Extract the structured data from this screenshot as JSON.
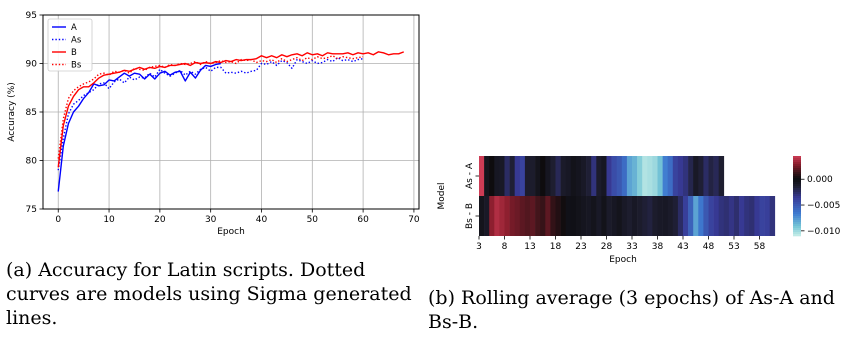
{
  "captions": {
    "a": "(a) Accuracy for Latin scripts. Dotted curves are models using Sigma generated lines.",
    "b": "(b) Rolling average (3 epochs) of As-A and Bs-B."
  },
  "chart_data": [
    {
      "type": "line",
      "xlabel": "Epoch",
      "ylabel": "Accuracy (%)",
      "xlim": [
        -3,
        71
      ],
      "ylim": [
        75,
        95
      ],
      "xticks": [
        0,
        10,
        20,
        30,
        40,
        50,
        60,
        70
      ],
      "yticks": [
        75,
        80,
        85,
        90,
        95
      ],
      "grid": true,
      "legend": "top-left",
      "series": [
        {
          "name": "A",
          "color": "#0000ff",
          "style": "solid",
          "x": [
            0,
            1,
            2,
            3,
            4,
            5,
            6,
            7,
            8,
            9,
            10,
            11,
            12,
            13,
            14,
            15,
            16,
            17,
            18,
            19,
            20,
            21,
            22,
            23,
            24,
            25,
            26,
            27,
            28,
            29,
            30,
            31,
            32
          ],
          "y": [
            76.8,
            81.5,
            83.8,
            85.0,
            85.6,
            86.4,
            87.0,
            87.9,
            87.7,
            87.8,
            88.3,
            88.2,
            88.6,
            89.0,
            88.7,
            89.0,
            88.9,
            88.4,
            88.9,
            88.4,
            89.0,
            89.2,
            88.8,
            89.1,
            89.2,
            88.2,
            89.1,
            88.5,
            89.3,
            89.8,
            89.7,
            89.9,
            90.0
          ]
        },
        {
          "name": "As",
          "color": "#0000ff",
          "style": "dotted",
          "x": [
            0,
            1,
            2,
            3,
            4,
            5,
            6,
            7,
            8,
            9,
            10,
            11,
            12,
            13,
            14,
            15,
            16,
            17,
            18,
            19,
            20,
            21,
            22,
            23,
            24,
            25,
            26,
            27,
            28,
            29,
            30,
            31,
            32,
            33,
            34,
            35,
            36,
            37,
            38,
            39,
            40,
            41,
            42,
            43,
            44,
            45,
            46,
            47,
            48,
            49,
            50,
            51,
            52,
            53,
            54,
            55,
            56,
            57,
            58,
            59,
            60
          ],
          "y": [
            79.0,
            82.3,
            84.8,
            85.8,
            86.2,
            86.7,
            87.0,
            87.3,
            87.9,
            88.0,
            87.4,
            88.1,
            88.4,
            88.0,
            88.6,
            88.3,
            88.6,
            88.5,
            89.0,
            88.6,
            89.4,
            89.0,
            88.7,
            89.0,
            89.3,
            88.8,
            89.2,
            88.9,
            89.4,
            89.6,
            89.2,
            89.6,
            89.6,
            89.0,
            89.1,
            89.0,
            89.2,
            89.0,
            89.2,
            89.3,
            90.0,
            89.9,
            90.2,
            89.8,
            90.3,
            90.1,
            89.5,
            90.4,
            90.2,
            90.0,
            90.3,
            90.0,
            90.1,
            90.4,
            90.2,
            90.6,
            90.3,
            90.4,
            90.2,
            90.4,
            90.5
          ]
        },
        {
          "name": "B",
          "color": "#ff0000",
          "style": "solid",
          "x": [
            0,
            1,
            2,
            3,
            4,
            5,
            6,
            7,
            8,
            9,
            10,
            11,
            12,
            13,
            14,
            15,
            16,
            17,
            18,
            19,
            20,
            21,
            22,
            23,
            24,
            25,
            26,
            27,
            28,
            29,
            30,
            31,
            32,
            33,
            34,
            35,
            36,
            37,
            38,
            39,
            40,
            41,
            42,
            43,
            44,
            45,
            46,
            47,
            48,
            49,
            50,
            51,
            52,
            53,
            54,
            55,
            56,
            57,
            58,
            59,
            60,
            61,
            62,
            63,
            64,
            65,
            66,
            67,
            68
          ],
          "y": [
            79.3,
            83.6,
            85.6,
            86.6,
            87.3,
            87.6,
            87.6,
            88.0,
            88.5,
            88.8,
            88.9,
            89.0,
            89.1,
            89.3,
            89.2,
            89.4,
            89.6,
            89.4,
            89.6,
            89.5,
            89.7,
            89.6,
            89.8,
            89.8,
            89.9,
            90.0,
            89.8,
            90.1,
            90.0,
            90.1,
            90.0,
            90.2,
            90.1,
            90.3,
            90.2,
            90.4,
            90.3,
            90.4,
            90.4,
            90.5,
            90.8,
            90.6,
            90.8,
            90.6,
            90.9,
            90.7,
            90.9,
            91.0,
            90.8,
            91.1,
            90.9,
            91.0,
            90.8,
            91.1,
            91.0,
            91.0,
            91.0,
            91.1,
            90.9,
            91.1,
            91.0,
            91.1,
            90.9,
            91.2,
            91.1,
            90.9,
            91.0,
            91.0,
            91.2
          ]
        },
        {
          "name": "Bs",
          "color": "#ff0000",
          "style": "dotted",
          "x": [
            0,
            1,
            2,
            3,
            4,
            5,
            6,
            7,
            8,
            9,
            10,
            11,
            12,
            13,
            14,
            15,
            16,
            17,
            18,
            19,
            20,
            21,
            22,
            23,
            24,
            25,
            26,
            27,
            28,
            29,
            30,
            31,
            32,
            33,
            34,
            35,
            36,
            37,
            38,
            39,
            40,
            41,
            42,
            43,
            44,
            45,
            46,
            47,
            48,
            49,
            50,
            51,
            52,
            53,
            54,
            55,
            56,
            57,
            58,
            59,
            60
          ],
          "y": [
            80.2,
            84.3,
            86.4,
            87.2,
            87.6,
            87.9,
            88.1,
            88.4,
            88.9,
            89.0,
            88.8,
            89.2,
            89.1,
            89.3,
            89.0,
            89.5,
            89.4,
            89.3,
            89.6,
            89.7,
            89.8,
            89.6,
            89.9,
            89.8,
            90.0,
            89.9,
            90.0,
            90.2,
            89.9,
            90.2,
            90.0,
            90.1,
            90.3,
            90.1,
            90.2,
            90.0,
            90.4,
            90.3,
            90.4,
            90.1,
            90.3,
            90.2,
            90.4,
            90.1,
            90.5,
            90.2,
            90.4,
            90.6,
            90.3,
            90.6,
            90.4,
            90.7,
            90.5,
            90.6,
            90.8,
            90.5,
            90.7,
            90.6,
            90.5,
            90.6,
            90.7
          ]
        }
      ]
    },
    {
      "type": "heatmap",
      "xlabel": "Epoch",
      "ylabel": "Model",
      "xticks": [
        "3",
        "8",
        "13",
        "18",
        "23",
        "28",
        "33",
        "38",
        "43",
        "48",
        "53",
        "58"
      ],
      "rows": [
        {
          "name": "As - A",
          "start": 3,
          "values": [
            0.0045,
            -0.0005,
            0.0002,
            -0.0008,
            -0.001,
            -0.0025,
            -0.0015,
            -0.0035,
            -0.004,
            -0.0012,
            -0.0012,
            -0.0005,
            0.0002,
            -0.0007,
            -0.0014,
            -0.0022,
            -0.0011,
            -0.0009,
            -0.0004,
            -0.0006,
            -0.001,
            -0.0015,
            -0.003,
            -0.0012,
            -0.0008,
            -0.0035,
            -0.0045,
            -0.005,
            -0.006,
            -0.008,
            -0.0085,
            -0.0095,
            -0.0105,
            -0.0103,
            -0.01,
            -0.009,
            -0.0068,
            -0.006,
            -0.004,
            -0.0035,
            -0.003,
            -0.002,
            -0.001,
            -0.0015,
            -0.0025,
            -0.0018,
            -0.0022,
            -0.0014
          ]
        },
        {
          "name": "Bs - B",
          "start": 3,
          "values": [
            -0.0005,
            -0.001,
            0.003,
            0.0038,
            0.0034,
            0.003,
            0.0025,
            0.0023,
            0.002,
            0.0018,
            0.002,
            0.0015,
            0.0012,
            0.002,
            0.0011,
            0.0007,
            0.0003,
            -0.0003,
            -0.0002,
            -0.0004,
            -0.0006,
            -0.0008,
            -0.0005,
            -0.001,
            -0.0004,
            -0.0011,
            -0.0008,
            -0.0005,
            -0.001,
            -0.0013,
            -0.0009,
            -0.0012,
            -0.0015,
            -0.0017,
            -0.0012,
            -0.001,
            -0.0009,
            -0.0011,
            -0.0015,
            -0.0025,
            -0.0038,
            -0.0055,
            -0.008,
            -0.0065,
            -0.005,
            -0.004,
            -0.0035,
            -0.003,
            -0.0028,
            -0.0032,
            -0.0027,
            -0.0035,
            -0.003,
            -0.0028,
            -0.0035,
            -0.004,
            -0.0038,
            -0.003
          ]
        }
      ],
      "colorbar": {
        "ticks": [
          0.0,
          -0.005,
          -0.01
        ],
        "tick_labels": [
          "0.000",
          "−0.005",
          "−0.010"
        ],
        "range": [
          -0.011,
          0.0045
        ]
      }
    }
  ]
}
